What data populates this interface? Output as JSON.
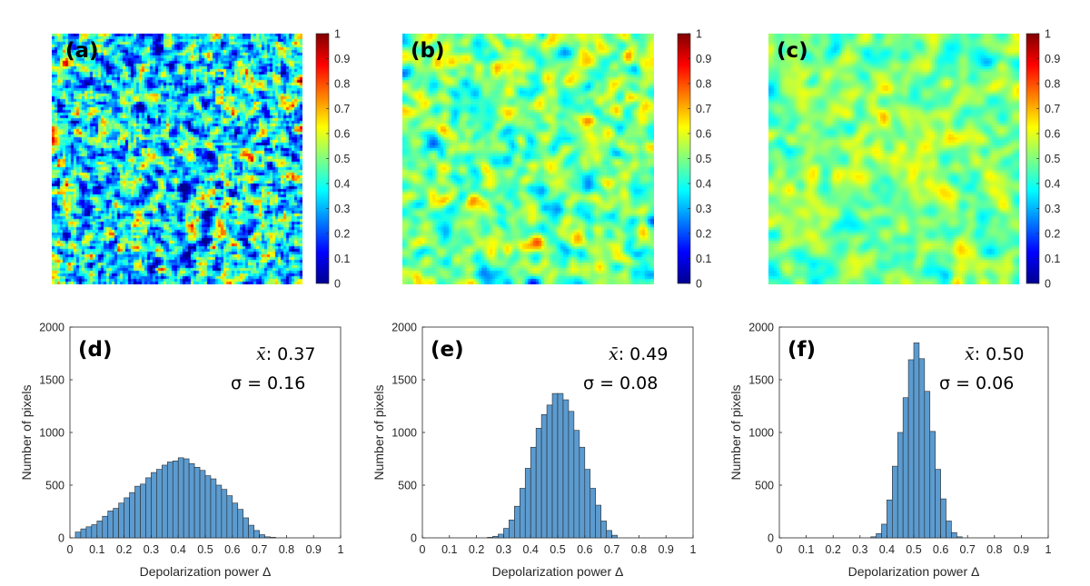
{
  "colormap": {
    "stops": [
      "#00008f",
      "#0000ff",
      "#0080ff",
      "#00ffff",
      "#80ff80",
      "#ffff00",
      "#ff8000",
      "#ff0000",
      "#800000"
    ],
    "map_range": [
      0,
      1
    ],
    "colorbar_ticks": [
      "0",
      "0.1",
      "0.2",
      "0.3",
      "0.4",
      "0.5",
      "0.6",
      "0.7",
      "0.8",
      "0.9",
      "1"
    ]
  },
  "maps": [
    {
      "label": "(a)",
      "mean": 0.37,
      "sigma": 0.16,
      "smooth": 1,
      "seed": 11
    },
    {
      "label": "(b)",
      "mean": 0.49,
      "sigma": 0.08,
      "smooth": 3,
      "seed": 23
    },
    {
      "label": "(c)",
      "mean": 0.5,
      "sigma": 0.06,
      "smooth": 4,
      "seed": 37
    }
  ],
  "chart_data": [
    {
      "type": "bar",
      "panel": "(d)",
      "xlabel": "Depolarization power Δ",
      "ylabel": "Number of pixels",
      "xlim": [
        0,
        1
      ],
      "ylim": [
        0,
        2000
      ],
      "xticks": [
        "0",
        "0.1",
        "0.2",
        "0.3",
        "0.4",
        "0.5",
        "0.6",
        "0.7",
        "0.8",
        "0.9",
        "1"
      ],
      "yticks": [
        "0",
        "500",
        "1000",
        "1500",
        "2000"
      ],
      "bin_start": 0.02,
      "bin_width": 0.02,
      "values": [
        55,
        85,
        105,
        125,
        160,
        205,
        255,
        280,
        330,
        380,
        430,
        490,
        510,
        570,
        620,
        650,
        690,
        720,
        730,
        760,
        750,
        705,
        670,
        640,
        590,
        560,
        500,
        460,
        400,
        330,
        270,
        190,
        120,
        70,
        30,
        10,
        5
      ],
      "stats": {
        "mean_symbol": "x̄",
        "mean_text": ": 0.37",
        "sigma_text": "σ = 0.16"
      }
    },
    {
      "type": "bar",
      "panel": "(e)",
      "xlabel": "Depolarization power Δ",
      "ylabel": "Number of pixels",
      "xlim": [
        0,
        1
      ],
      "ylim": [
        0,
        2000
      ],
      "xticks": [
        "0",
        "0.1",
        "0.2",
        "0.3",
        "0.4",
        "0.5",
        "0.6",
        "0.7",
        "0.8",
        "0.9",
        "1"
      ],
      "yticks": [
        "0",
        "500",
        "1000",
        "1500",
        "2000"
      ],
      "bin_start": 0.24,
      "bin_width": 0.02,
      "values": [
        5,
        15,
        35,
        90,
        170,
        300,
        470,
        660,
        860,
        1040,
        1170,
        1260,
        1370,
        1370,
        1310,
        1200,
        1020,
        860,
        650,
        470,
        310,
        160,
        70,
        25
      ],
      "stats": {
        "mean_symbol": "x̄",
        "mean_text": ": 0.49",
        "sigma_text": "σ = 0.08"
      }
    },
    {
      "type": "bar",
      "panel": "(f)",
      "xlabel": "Depolarization power Δ",
      "ylabel": "Number of pixels",
      "xlim": [
        0,
        1
      ],
      "ylim": [
        0,
        2000
      ],
      "xticks": [
        "0",
        "0.1",
        "0.2",
        "0.3",
        "0.4",
        "0.5",
        "0.6",
        "0.7",
        "0.8",
        "0.9",
        "1"
      ],
      "yticks": [
        "0",
        "500",
        "1000",
        "1500",
        "2000"
      ],
      "bin_start": 0.34,
      "bin_width": 0.02,
      "values": [
        10,
        40,
        130,
        360,
        680,
        1000,
        1330,
        1690,
        1850,
        1700,
        1390,
        1010,
        650,
        370,
        160,
        50,
        10
      ],
      "stats": {
        "mean_symbol": "x̄",
        "mean_text": ": 0.50",
        "sigma_text": "σ = 0.06"
      }
    }
  ]
}
